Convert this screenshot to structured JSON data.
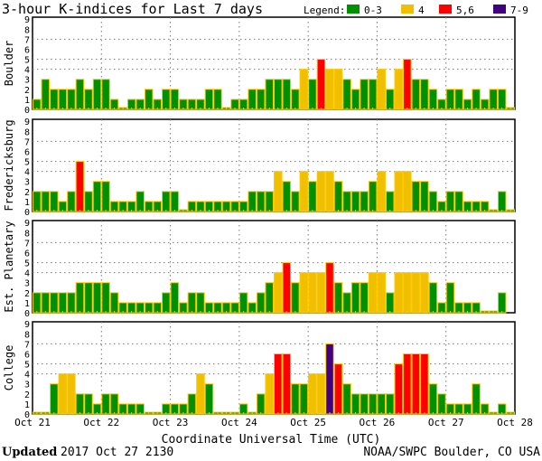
{
  "title": "3-hour K-indices for Last 7 days",
  "legend": {
    "label": "Legend:",
    "items": [
      {
        "label": "0-3",
        "color": "#009000"
      },
      {
        "label": "4",
        "color": "#f0c000"
      },
      {
        "label": "5,6",
        "color": "#ff0000"
      },
      {
        "label": "7-9",
        "color": "#400080"
      }
    ]
  },
  "footer": {
    "updated_label": "Updated",
    "updated_value": "2017 Oct 27 2130",
    "source": "NOAA/SWPC Boulder, CO USA"
  },
  "chart_data": {
    "type": "bar",
    "xlabel": "Coordinate Universal Time (UTC)",
    "x_tick_labels": [
      "Oct 21",
      "Oct 22",
      "Oct 23",
      "Oct 24",
      "Oct 25",
      "Oct 26",
      "Oct 27",
      "Oct 28"
    ],
    "y_tick_labels": [
      "0",
      "1",
      "2",
      "3",
      "4",
      "5",
      "6",
      "7",
      "8",
      "9"
    ],
    "ylim": [
      0,
      9
    ],
    "interval_hours": 3,
    "grid": {
      "horizontal_at": [
        4,
        5,
        7
      ],
      "vertical_at_days": true
    },
    "bar_border_color": "#ffc800",
    "series": [
      {
        "name": "Boulder",
        "values": [
          1,
          3,
          2,
          2,
          2,
          3,
          2,
          3,
          3,
          1,
          0,
          1,
          1,
          2,
          1,
          2,
          2,
          1,
          1,
          1,
          2,
          2,
          0,
          1,
          1,
          2,
          2,
          3,
          3,
          3,
          2,
          4,
          3,
          5,
          4,
          4,
          3,
          2,
          3,
          3,
          4,
          2,
          4,
          5,
          3,
          3,
          2,
          1,
          2,
          2,
          1,
          2,
          1,
          2,
          2,
          0
        ]
      },
      {
        "name": "Fredericksburg",
        "values": [
          2,
          2,
          2,
          1,
          2,
          5,
          2,
          3,
          3,
          1,
          1,
          1,
          2,
          1,
          1,
          2,
          2,
          0,
          1,
          1,
          1,
          1,
          1,
          1,
          1,
          2,
          2,
          2,
          4,
          3,
          2,
          4,
          3,
          4,
          4,
          3,
          2,
          2,
          2,
          3,
          4,
          2,
          4,
          4,
          3,
          3,
          2,
          1,
          2,
          2,
          1,
          1,
          1,
          0,
          2,
          0
        ]
      },
      {
        "name": "Est. Planetary",
        "values": [
          2,
          2,
          2,
          2,
          2,
          3,
          3,
          3,
          3,
          2,
          1,
          1,
          1,
          1,
          1,
          2,
          3,
          1,
          2,
          2,
          1,
          1,
          1,
          1,
          2,
          1,
          2,
          3,
          4,
          5,
          3,
          4,
          4,
          4,
          5,
          3,
          2,
          3,
          3,
          4,
          4,
          2,
          4,
          4,
          4,
          4,
          3,
          1,
          3,
          1,
          1,
          1,
          0,
          0,
          2,
          null
        ]
      },
      {
        "name": "College",
        "values": [
          0,
          0,
          3,
          4,
          4,
          2,
          2,
          1,
          2,
          2,
          1,
          1,
          1,
          0,
          0,
          1,
          1,
          1,
          2,
          4,
          3,
          0,
          0,
          0,
          1,
          0,
          2,
          4,
          6,
          6,
          3,
          3,
          4,
          4,
          7,
          5,
          3,
          2,
          2,
          2,
          2,
          2,
          5,
          6,
          6,
          6,
          3,
          2,
          1,
          1,
          1,
          3,
          1,
          0,
          1,
          0
        ]
      }
    ]
  }
}
